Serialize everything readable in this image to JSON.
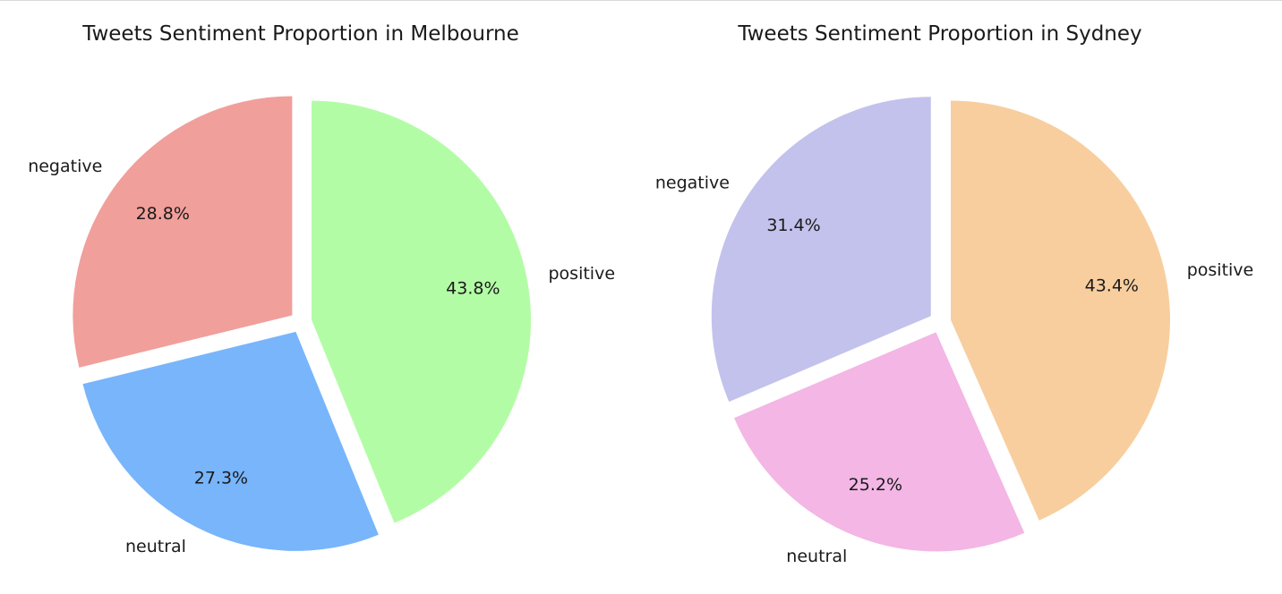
{
  "chart_data": [
    {
      "type": "pie",
      "title": "Tweets Sentiment Proportion in Melbourne",
      "labels": [
        "negative",
        "neutral",
        "positive"
      ],
      "values": [
        28.8,
        27.3,
        43.8
      ],
      "value_labels": [
        "28.8%",
        "27.3%",
        "43.8%"
      ],
      "colors": [
        "#f19f9b",
        "#78b5fb",
        "#b3fca6"
      ],
      "explode": [
        0.05,
        0.05,
        0.05
      ],
      "start_angle_deg": 90
    },
    {
      "type": "pie",
      "title": "Tweets Sentiment Proportion in Sydney",
      "labels": [
        "negative",
        "neutral",
        "positive"
      ],
      "values": [
        31.4,
        25.2,
        43.4
      ],
      "value_labels": [
        "31.4%",
        "25.2%",
        "43.4%"
      ],
      "colors": [
        "#c3c2ec",
        "#f3b6e5",
        "#f8ce9f"
      ],
      "explode": [
        0.05,
        0.05,
        0.05
      ],
      "start_angle_deg": 90
    }
  ]
}
